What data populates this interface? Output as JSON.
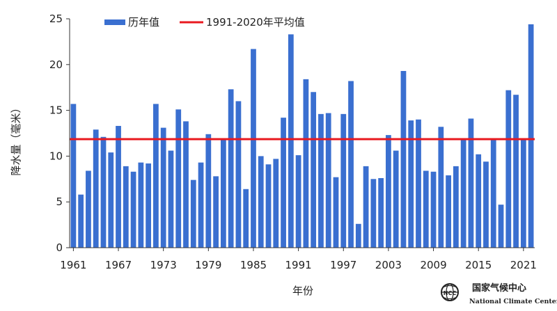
{
  "chart_data": {
    "type": "bar",
    "ylabel": "降水量（毫米）",
    "xlabel": "年份",
    "ylim": [
      0,
      25
    ],
    "y_ticks": [
      "0",
      "5",
      "10",
      "15",
      "20",
      "25"
    ],
    "x_tick_labels": [
      "1961",
      "1967",
      "1973",
      "1979",
      "1985",
      "1991",
      "1997",
      "2003",
      "2009",
      "2015",
      "2021"
    ],
    "x_tick_years": [
      1961,
      1967,
      1973,
      1979,
      1985,
      1991,
      1997,
      2003,
      2009,
      2015,
      2021
    ],
    "years": [
      1961,
      1962,
      1963,
      1964,
      1965,
      1966,
      1967,
      1968,
      1969,
      1970,
      1971,
      1972,
      1973,
      1974,
      1975,
      1976,
      1977,
      1978,
      1979,
      1980,
      1981,
      1982,
      1983,
      1984,
      1985,
      1986,
      1987,
      1988,
      1989,
      1990,
      1991,
      1992,
      1993,
      1994,
      1995,
      1996,
      1997,
      1998,
      1999,
      2000,
      2001,
      2002,
      2003,
      2004,
      2005,
      2006,
      2007,
      2008,
      2009,
      2010,
      2011,
      2012,
      2013,
      2014,
      2015,
      2016,
      2017,
      2018,
      2019,
      2020,
      2021,
      2022
    ],
    "series": [
      {
        "name": "历年值",
        "values": [
          15.7,
          5.8,
          8.4,
          12.9,
          12.1,
          10.4,
          13.3,
          8.9,
          8.3,
          9.3,
          9.2,
          15.7,
          13.1,
          10.6,
          15.1,
          13.8,
          7.4,
          9.3,
          12.4,
          7.8,
          11.8,
          17.3,
          16.0,
          6.4,
          21.7,
          10.0,
          9.1,
          9.7,
          14.2,
          23.3,
          10.1,
          18.4,
          17.0,
          14.6,
          14.7,
          7.7,
          14.6,
          18.2,
          2.6,
          8.9,
          7.5,
          7.6,
          12.3,
          10.6,
          19.3,
          13.9,
          14.0,
          8.4,
          8.3,
          13.2,
          7.9,
          8.9,
          11.8,
          14.1,
          10.2,
          9.4,
          11.8,
          4.7,
          17.2,
          16.7,
          11.8,
          24.4
        ]
      }
    ],
    "reference_line": {
      "name": "1991-2020年平均值",
      "value": 11.85
    },
    "legend_position": "top-left",
    "colors": {
      "bar": "#3a6fd0",
      "reference": "#e8191f"
    }
  },
  "logo": {
    "cn": "国家气候中心",
    "en": "National Climate Center"
  }
}
